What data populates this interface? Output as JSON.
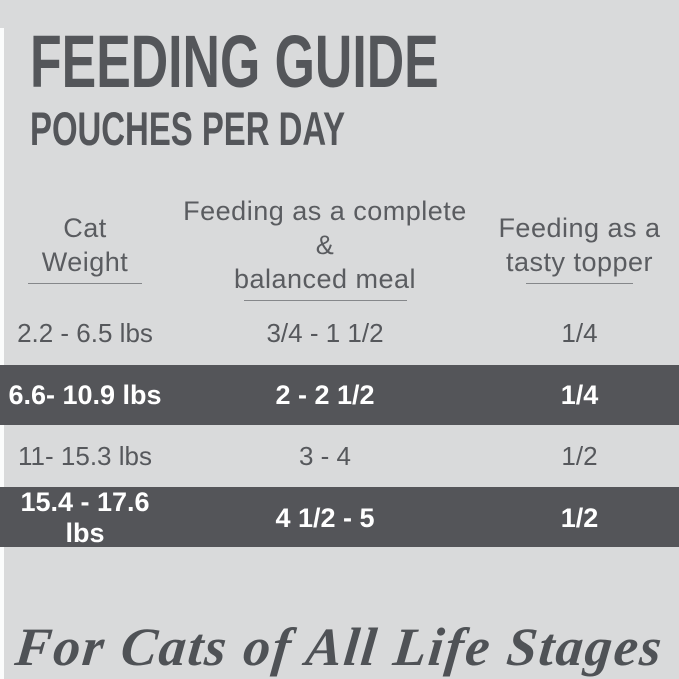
{
  "page": {
    "background_color": "#d9dadb",
    "band_color": "#545559",
    "text_color": "#54565a",
    "band_text_color": "#ffffff"
  },
  "header": {
    "title": "FEEDING GUIDE",
    "subtitle": "POUCHES PER DAY"
  },
  "table": {
    "columns": [
      {
        "line1": "Cat",
        "line2": "Weight"
      },
      {
        "line1": "Feeding as a complete &",
        "line2": "balanced meal"
      },
      {
        "line1": "Feeding as a",
        "line2": "tasty topper"
      }
    ],
    "rows": [
      {
        "weight": "2.2 - 6.5 lbs",
        "complete_meal": "3/4 - 1 1/2",
        "topper": "1/4",
        "highlighted": false
      },
      {
        "weight": "6.6- 10.9 lbs",
        "complete_meal": "2 - 2 1/2",
        "topper": "1/4",
        "highlighted": true
      },
      {
        "weight": "11- 15.3 lbs",
        "complete_meal": "3 - 4",
        "topper": "1/2",
        "highlighted": false
      },
      {
        "weight": "15.4 - 17.6 lbs",
        "complete_meal": "4 1/2 - 5",
        "topper": "1/2",
        "highlighted": true
      }
    ]
  },
  "footer": {
    "tagline": "For Cats of All Life Stages"
  }
}
